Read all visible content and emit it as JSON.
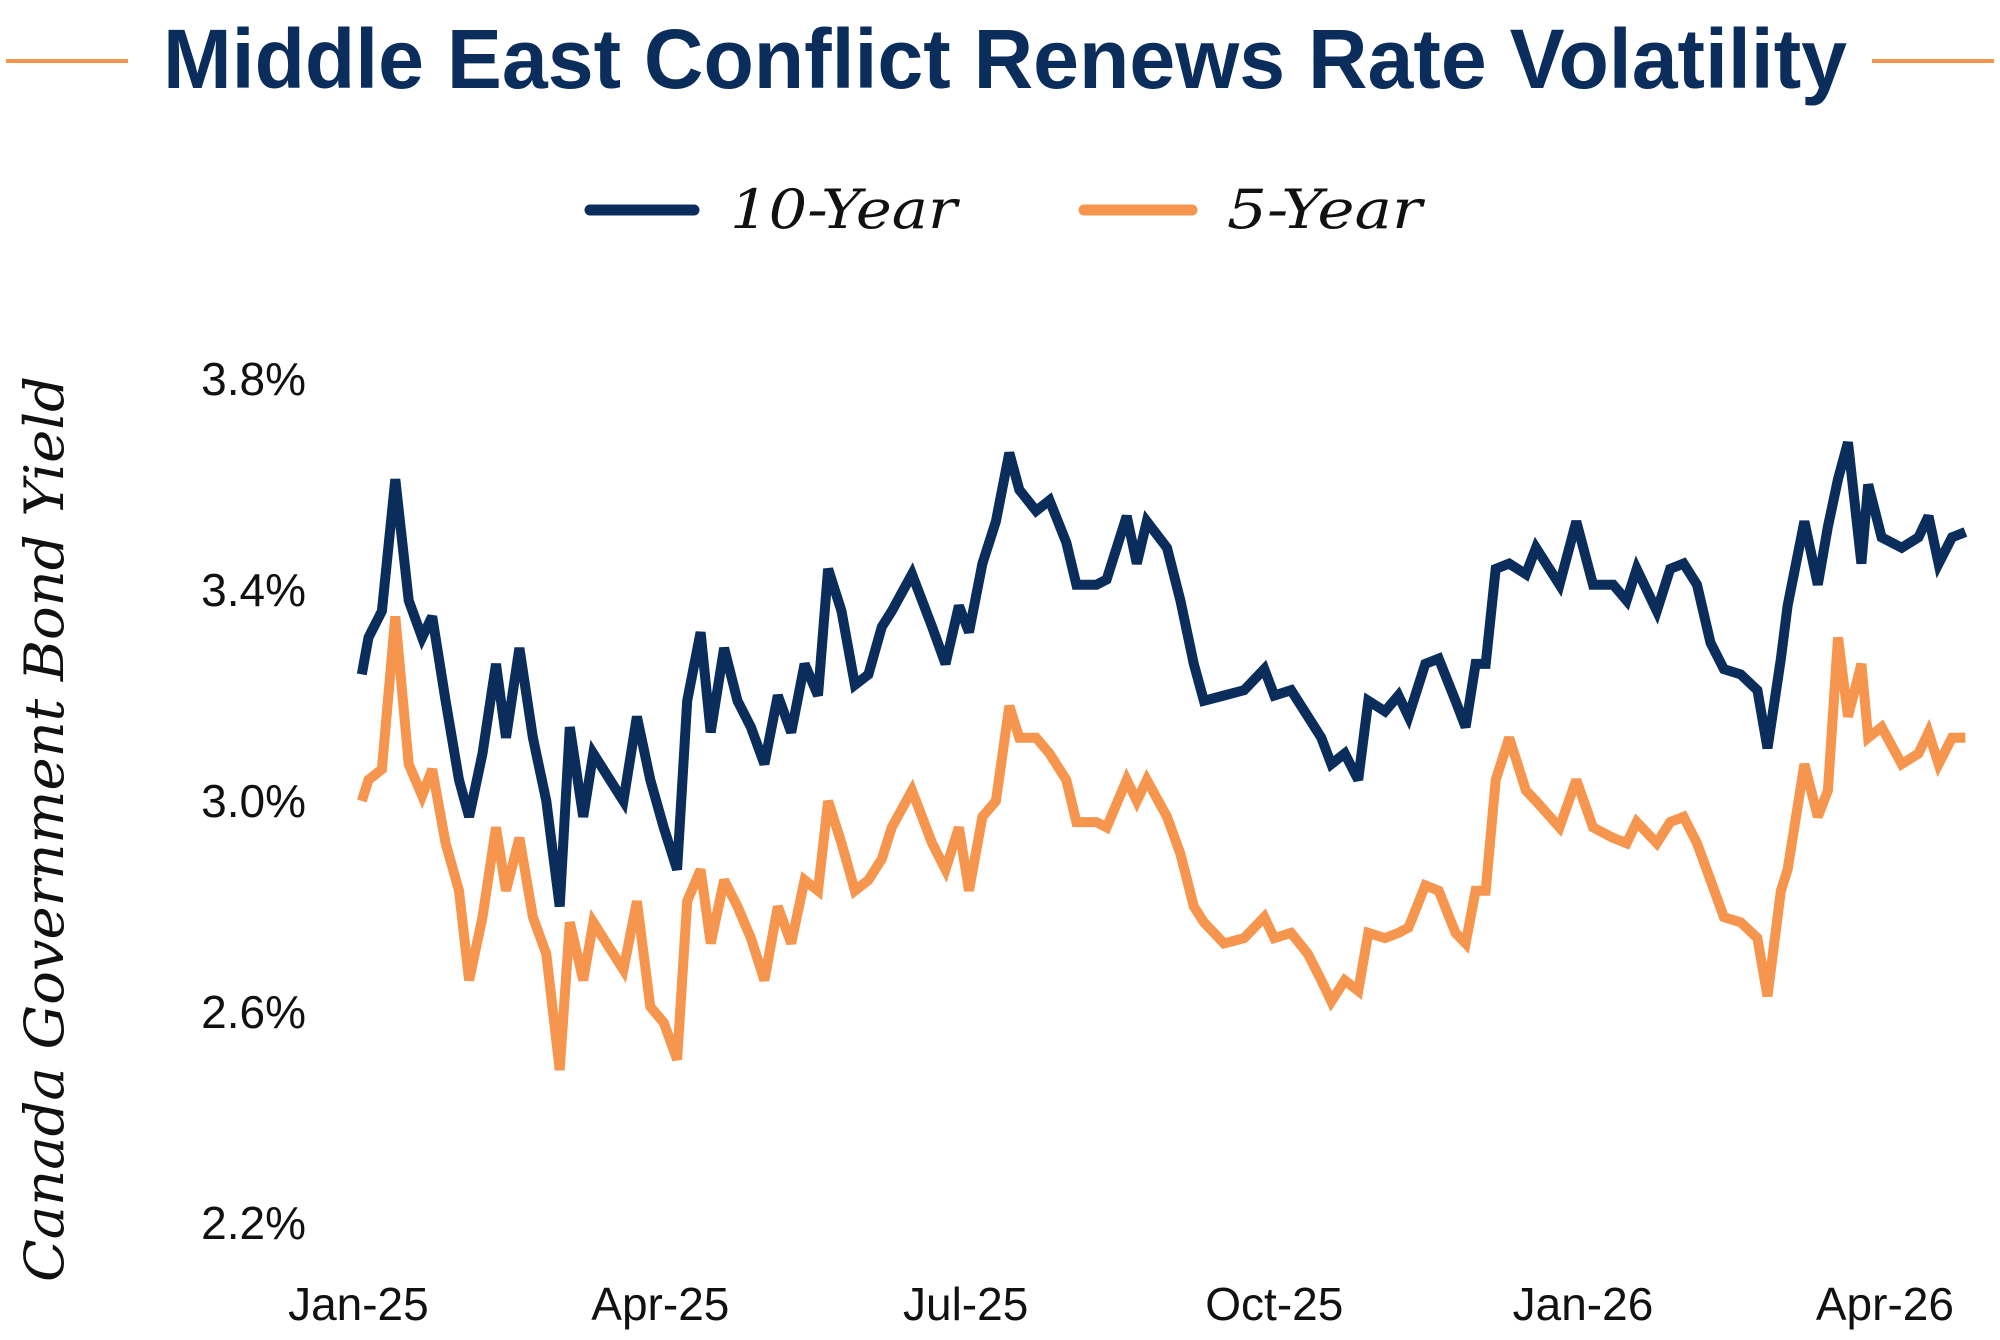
{
  "colors": {
    "ten_year": "#0b2d5c",
    "five_year": "#f6964e",
    "title": "#0b2d5c"
  },
  "chart_data": {
    "type": "line",
    "title": "Middle East Conflict Renews Rate Volatility",
    "ylabel": "Canada Government Bond Yield",
    "xlabel": "",
    "ylim": [
      2.2,
      3.8
    ],
    "yticks": [
      "3.8%",
      "3.4%",
      "3.0%",
      "2.6%",
      "2.2%"
    ],
    "ytick_values": [
      3.8,
      3.4,
      3.0,
      2.6,
      2.2
    ],
    "xticks": [
      "Jan-25",
      "Apr-25",
      "Jul-25",
      "Oct-25",
      "Jan-26",
      "Apr-26"
    ],
    "xtick_dates": [
      "2025-01-01",
      "2025-04-01",
      "2025-07-01",
      "2025-10-01",
      "2026-01-01",
      "2026-04-01"
    ],
    "grid": false,
    "legend": "top-center",
    "x": [
      "2025-01-02",
      "2025-01-04",
      "2025-01-08",
      "2025-01-12",
      "2025-01-16",
      "2025-01-20",
      "2025-01-23",
      "2025-01-27",
      "2025-01-31",
      "2025-02-03",
      "2025-02-07",
      "2025-02-11",
      "2025-02-14",
      "2025-02-18",
      "2025-02-22",
      "2025-02-26",
      "2025-03-02",
      "2025-03-05",
      "2025-03-09",
      "2025-03-12",
      "2025-03-17",
      "2025-03-21",
      "2025-03-25",
      "2025-03-29",
      "2025-04-02",
      "2025-04-06",
      "2025-04-09",
      "2025-04-13",
      "2025-04-16",
      "2025-04-20",
      "2025-04-24",
      "2025-04-28",
      "2025-05-02",
      "2025-05-06",
      "2025-05-10",
      "2025-05-14",
      "2025-05-18",
      "2025-05-21",
      "2025-05-25",
      "2025-05-29",
      "2025-06-02",
      "2025-06-06",
      "2025-06-09",
      "2025-06-15",
      "2025-06-21",
      "2025-06-25",
      "2025-06-29",
      "2025-07-02",
      "2025-07-06",
      "2025-07-10",
      "2025-07-14",
      "2025-07-17",
      "2025-07-22",
      "2025-07-26",
      "2025-07-31",
      "2025-08-03",
      "2025-08-09",
      "2025-08-12",
      "2025-08-18",
      "2025-08-21",
      "2025-08-24",
      "2025-08-30",
      "2025-09-03",
      "2025-09-07",
      "2025-09-10",
      "2025-09-16",
      "2025-09-22",
      "2025-09-28",
      "2025-10-01",
      "2025-10-06",
      "2025-10-11",
      "2025-10-15",
      "2025-10-18",
      "2025-10-22",
      "2025-10-26",
      "2025-10-29",
      "2025-11-03",
      "2025-11-07",
      "2025-11-10",
      "2025-11-15",
      "2025-11-19",
      "2025-11-24",
      "2025-11-27",
      "2025-11-30",
      "2025-12-03",
      "2025-12-06",
      "2025-12-10",
      "2025-12-15",
      "2025-12-18",
      "2025-12-25",
      "2025-12-30",
      "2026-01-04",
      "2026-01-10",
      "2026-01-14",
      "2026-01-17",
      "2026-01-23",
      "2026-01-27",
      "2026-01-31",
      "2026-02-04",
      "2026-02-08",
      "2026-02-12",
      "2026-02-17",
      "2026-02-22",
      "2026-02-25",
      "2026-03-01",
      "2026-03-03",
      "2026-03-08",
      "2026-03-12",
      "2026-03-15",
      "2026-03-18",
      "2026-03-21",
      "2026-03-25",
      "2026-03-27",
      "2026-03-31",
      "2026-04-06",
      "2026-04-11",
      "2026-04-14",
      "2026-04-17",
      "2026-04-21",
      "2026-04-25"
    ],
    "series": [
      {
        "name": "10-Year",
        "color": "#0b2d5c",
        "values": [
          3.24,
          3.31,
          3.36,
          3.61,
          3.38,
          3.31,
          3.35,
          3.19,
          3.04,
          2.97,
          3.09,
          3.26,
          3.12,
          3.29,
          3.12,
          3.0,
          2.8,
          3.14,
          2.97,
          3.09,
          3.04,
          3.0,
          3.16,
          3.04,
          2.95,
          2.87,
          3.19,
          3.32,
          3.13,
          3.29,
          3.19,
          3.14,
          3.07,
          3.2,
          3.13,
          3.26,
          3.2,
          3.44,
          3.36,
          3.22,
          3.24,
          3.33,
          3.36,
          3.43,
          3.33,
          3.26,
          3.37,
          3.32,
          3.45,
          3.53,
          3.66,
          3.59,
          3.55,
          3.57,
          3.49,
          3.41,
          3.41,
          3.42,
          3.54,
          3.45,
          3.53,
          3.48,
          3.38,
          3.26,
          3.19,
          3.2,
          3.21,
          3.25,
          3.2,
          3.21,
          3.16,
          3.12,
          3.07,
          3.09,
          3.04,
          3.19,
          3.17,
          3.2,
          3.16,
          3.26,
          3.27,
          3.19,
          3.14,
          3.26,
          3.26,
          3.44,
          3.45,
          3.43,
          3.48,
          3.41,
          3.53,
          3.41,
          3.41,
          3.38,
          3.44,
          3.36,
          3.44,
          3.45,
          3.41,
          3.3,
          3.25,
          3.24,
          3.21,
          3.1,
          3.27,
          3.37,
          3.53,
          3.41,
          3.52,
          3.61,
          3.68,
          3.45,
          3.6,
          3.5,
          3.48,
          3.5,
          3.54,
          3.45,
          3.5,
          3.51
        ]
      },
      {
        "name": "5-Year",
        "color": "#f6964e",
        "values": [
          3.0,
          3.04,
          3.06,
          3.35,
          3.07,
          3.01,
          3.06,
          2.92,
          2.83,
          2.66,
          2.78,
          2.95,
          2.83,
          2.93,
          2.78,
          2.71,
          2.49,
          2.77,
          2.66,
          2.77,
          2.72,
          2.68,
          2.81,
          2.61,
          2.58,
          2.51,
          2.81,
          2.87,
          2.73,
          2.85,
          2.8,
          2.74,
          2.66,
          2.8,
          2.73,
          2.85,
          2.83,
          3.0,
          2.92,
          2.83,
          2.85,
          2.89,
          2.95,
          3.02,
          2.92,
          2.87,
          2.95,
          2.83,
          2.97,
          3.0,
          3.18,
          3.12,
          3.12,
          3.09,
          3.04,
          2.96,
          2.96,
          2.95,
          3.04,
          3.0,
          3.04,
          2.97,
          2.9,
          2.8,
          2.77,
          2.73,
          2.74,
          2.78,
          2.74,
          2.75,
          2.71,
          2.66,
          2.62,
          2.66,
          2.64,
          2.75,
          2.74,
          2.75,
          2.76,
          2.84,
          2.83,
          2.75,
          2.73,
          2.83,
          2.83,
          3.04,
          3.12,
          3.02,
          3.0,
          2.95,
          3.04,
          2.95,
          2.93,
          2.92,
          2.96,
          2.92,
          2.96,
          2.97,
          2.92,
          2.85,
          2.78,
          2.77,
          2.74,
          2.63,
          2.83,
          2.87,
          3.07,
          2.97,
          3.02,
          3.31,
          3.16,
          3.26,
          3.12,
          3.14,
          3.07,
          3.09,
          3.13,
          3.07,
          3.12,
          3.12
        ]
      }
    ]
  }
}
